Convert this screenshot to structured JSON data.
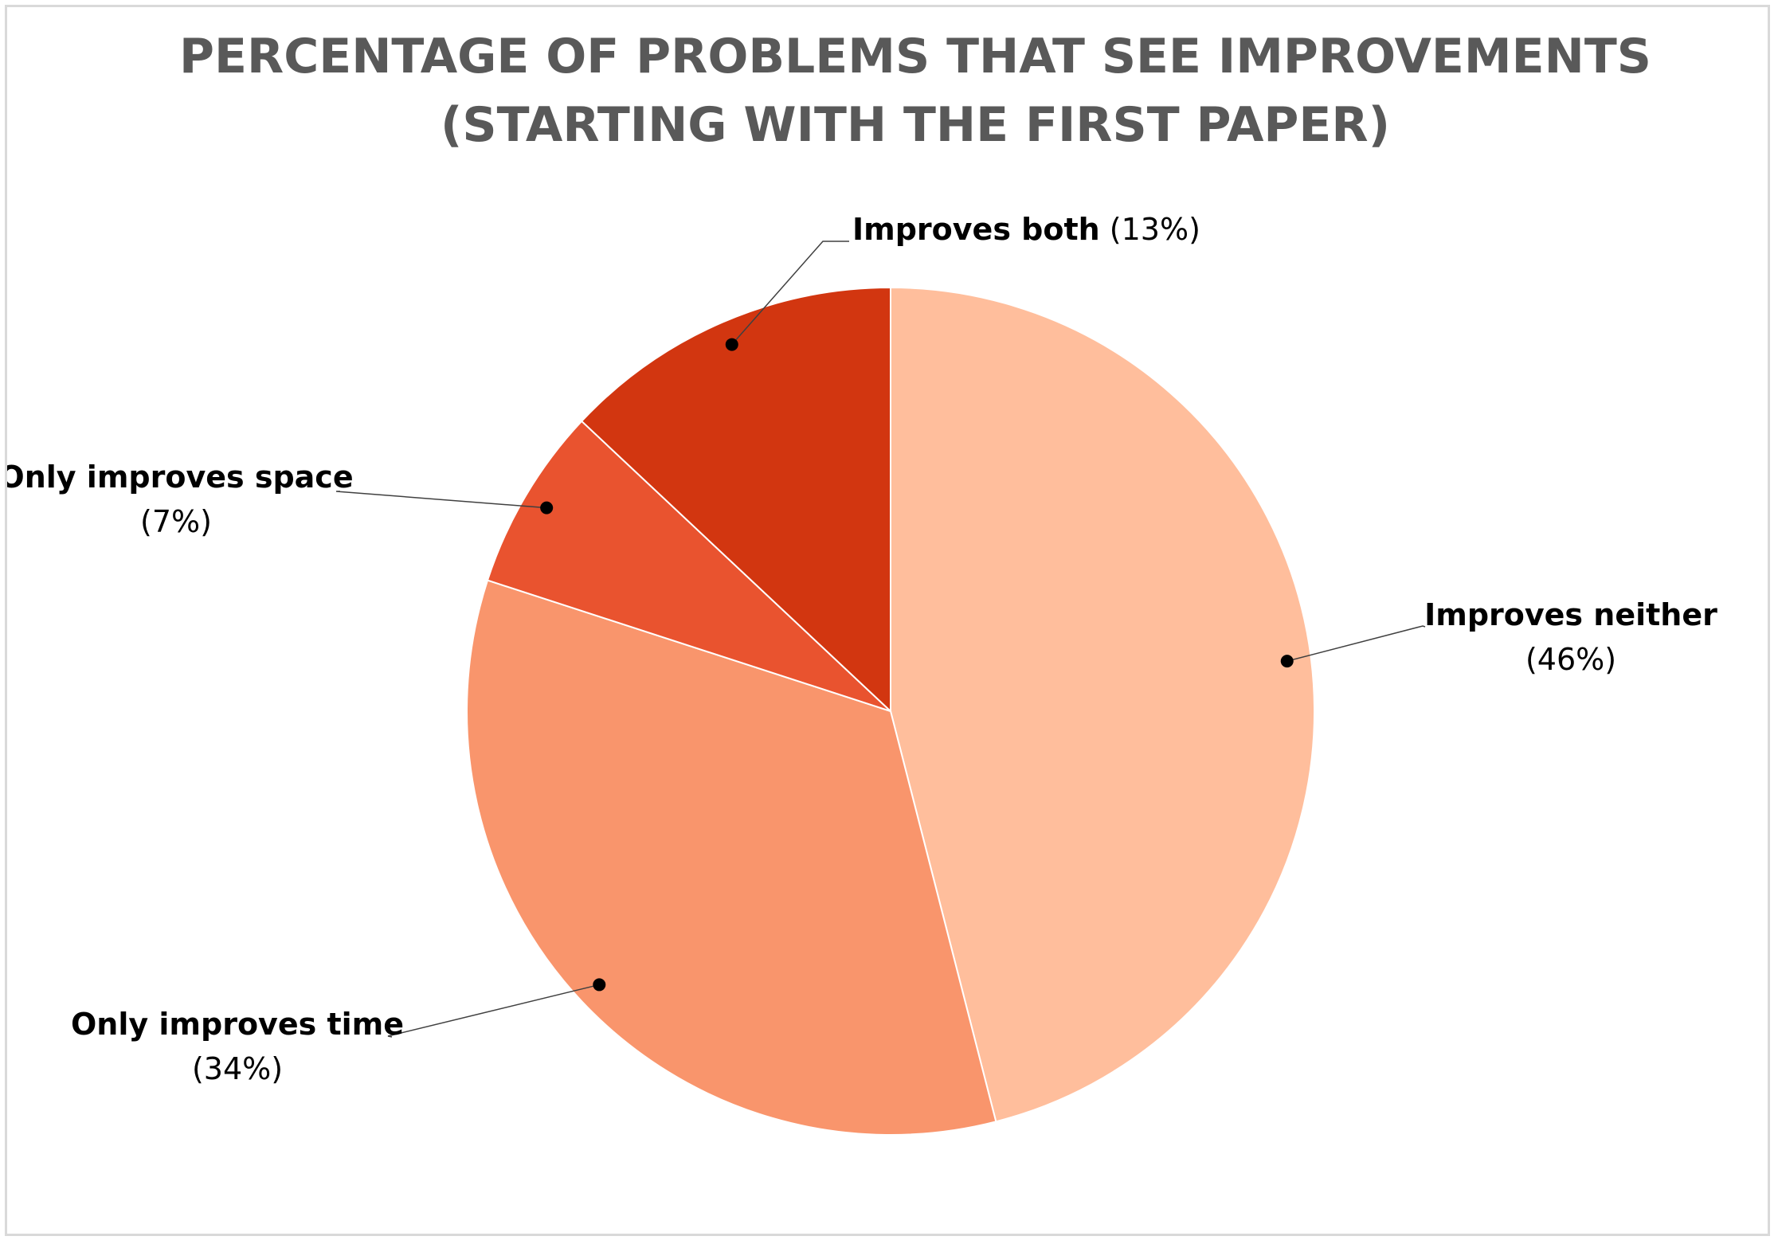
{
  "chart_data": {
    "type": "pie",
    "title": "PERCENTAGE OF PROBLEMS THAT SEE IMPROVEMENTS (STARTING WITH THE FIRST PAPER)",
    "title_lines": [
      "PERCENTAGE OF PROBLEMS THAT SEE IMPROVEMENTS",
      "(STARTING WITH THE FIRST PAPER)"
    ],
    "start_angle_deg": 0,
    "direction": "clockwise",
    "slices": [
      {
        "label": "Improves neither",
        "value": 46,
        "value_label": "(46%)",
        "color": "#FFBE9C"
      },
      {
        "label": "Only improves time",
        "value": 34,
        "value_label": "(34%)",
        "color": "#F9956C"
      },
      {
        "label": "Only improves space",
        "value": 7,
        "value_label": "(7%)",
        "color": "#E9532F"
      },
      {
        "label": "Improves both",
        "value": 13,
        "value_label": "(13%)",
        "color": "#D23610"
      }
    ],
    "legend": "none",
    "data_labels": "outside-with-leader-lines"
  }
}
